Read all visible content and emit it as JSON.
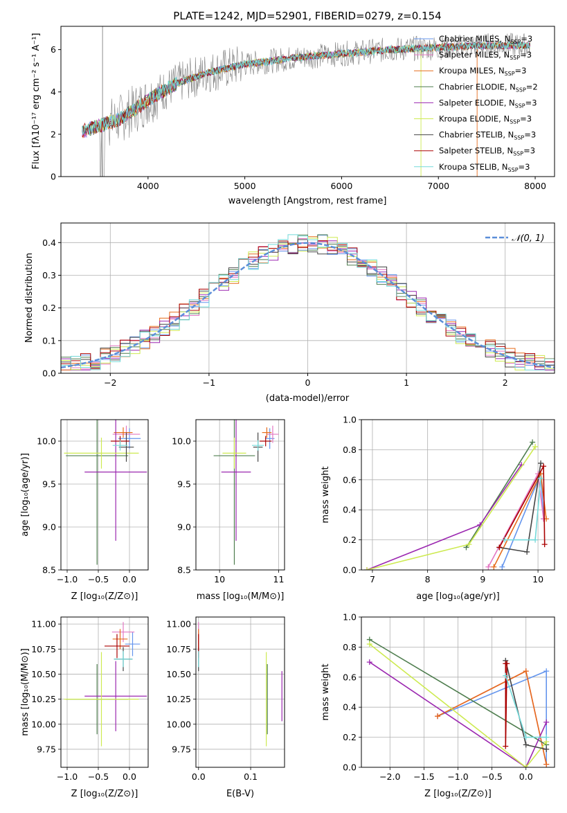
{
  "chart_data": [
    {
      "id": "spectrum",
      "type": "line",
      "title": "PLATE=1242, MJD=52901, FIBERID=0279, z=0.154",
      "xlabel": "wavelength [Angstrom, rest frame]",
      "ylabel": "Flux [fλ10⁻¹⁷ erg cm⁻² s⁻¹ A⁻¹]",
      "xlim": [
        3100,
        8200
      ],
      "ylim": [
        0,
        7.1
      ],
      "xticks": [
        4000,
        5000,
        6000,
        7000,
        8000
      ],
      "yticks": [
        0,
        2,
        4,
        6
      ],
      "grid": false,
      "legend_position": "top-right",
      "anchors": {
        "x": [
          3300,
          3500,
          3700,
          3900,
          4100,
          4300,
          4600,
          5000,
          5500,
          6000,
          6500,
          7000,
          7500,
          7900
        ],
        "y": [
          2.1,
          2.4,
          2.7,
          3.3,
          3.9,
          4.4,
          4.9,
          5.3,
          5.6,
          5.8,
          6.0,
          6.1,
          6.2,
          6.2
        ]
      },
      "series": [
        {
          "name": "Chabrier MILES, N",
          "sub": "SSP",
          "suffix": "=3",
          "color": "#6495ed"
        },
        {
          "name": "Salpeter MILES, N",
          "sub": "SSP",
          "suffix": "=3",
          "color": "#e377c2"
        },
        {
          "name": "Kroupa MILES, N",
          "sub": "SSP",
          "suffix": "=3",
          "color": "#e66b1a"
        },
        {
          "name": "Chabrier ELODIE, N",
          "sub": "SSP",
          "suffix": "=2",
          "color": "#4e7d4e"
        },
        {
          "name": "Salpeter ELODIE, N",
          "sub": "SSP",
          "suffix": "=3",
          "color": "#9b27b0"
        },
        {
          "name": "Kroupa ELODIE, N",
          "sub": "SSP",
          "suffix": "=3",
          "color": "#cdea50"
        },
        {
          "name": "Chabrier STELIB, N",
          "sub": "SSP",
          "suffix": "=3",
          "color": "#444444"
        },
        {
          "name": "Salpeter STELIB, N",
          "sub": "SSP",
          "suffix": "=3",
          "color": "#aa0000"
        },
        {
          "name": "Kroupa STELIB, N",
          "sub": "SSP",
          "suffix": "=3",
          "color": "#72d9d9"
        }
      ]
    },
    {
      "id": "residuals",
      "type": "histogram",
      "xlabel": "(data-model)/error",
      "ylabel": "Normed distribution",
      "xlim": [
        -2.5,
        2.5
      ],
      "ylim": [
        0,
        0.46
      ],
      "xticks": [
        -2,
        -1,
        0,
        1,
        2
      ],
      "yticks": [
        0.0,
        0.1,
        0.2,
        0.3,
        0.4
      ],
      "grid": true,
      "legend": "𝒩(0, 1)",
      "legend_position": "top-right",
      "bin_width": 0.1
    },
    {
      "id": "age_vs_Z",
      "type": "errorbar",
      "xlabel": "Z [log₁₀(Z/Z⊙)]",
      "ylabel": "age  [log₁₀(age/yr)]",
      "xlim": [
        -1.1,
        0.3
      ],
      "ylim": [
        8.5,
        10.25
      ],
      "xticks": [
        -1.0,
        -0.5,
        0.0
      ],
      "yticks": [
        8.5,
        9.0,
        9.5,
        10.0
      ],
      "grid": true,
      "points": [
        {
          "x": 0.0,
          "xerr": 0.18,
          "y": 10.03,
          "yerr": 0.12,
          "color": "#6495ed"
        },
        {
          "x": -0.05,
          "xerr": 0.22,
          "y": 10.08,
          "yerr": 0.1,
          "color": "#e377c2"
        },
        {
          "x": -0.1,
          "xerr": 0.15,
          "y": 10.1,
          "yerr": 0.06,
          "color": "#e66b1a"
        },
        {
          "x": -0.52,
          "xerr": 0.5,
          "y": 9.83,
          "yerr": 1.27,
          "color": "#4e7d4e"
        },
        {
          "x": -0.22,
          "xerr": 0.5,
          "y": 9.64,
          "yerr": 0.8,
          "color": "#9b27b0"
        },
        {
          "x": -0.45,
          "xerr": 0.6,
          "y": 9.86,
          "yerr": 0.18,
          "color": "#cdea50"
        },
        {
          "x": -0.05,
          "xerr": 0.12,
          "y": 9.93,
          "yerr": 0.17,
          "color": "#444444"
        },
        {
          "x": -0.15,
          "xerr": 0.15,
          "y": 10.0,
          "yerr": 0.06,
          "color": "#aa0000"
        },
        {
          "x": -0.15,
          "xerr": 0.12,
          "y": 9.95,
          "yerr": 0.06,
          "color": "#72d9d9"
        }
      ]
    },
    {
      "id": "age_vs_mass",
      "type": "errorbar",
      "xlabel": "mass [log₁₀(M/M⊙)]",
      "xlim": [
        9.6,
        11.1
      ],
      "ylim": [
        8.5,
        10.25
      ],
      "xticks": [
        10,
        11
      ],
      "yticks": [
        8.5,
        9.0,
        9.5,
        10.0
      ],
      "grid": true,
      "points": [
        {
          "x": 10.85,
          "xerr": 0.08,
          "y": 10.03,
          "yerr": 0.12,
          "color": "#6495ed"
        },
        {
          "x": 10.9,
          "xerr": 0.1,
          "y": 10.08,
          "yerr": 0.1,
          "color": "#e377c2"
        },
        {
          "x": 10.8,
          "xerr": 0.08,
          "y": 10.1,
          "yerr": 0.06,
          "color": "#e66b1a"
        },
        {
          "x": 10.25,
          "xerr": 0.35,
          "y": 9.83,
          "yerr": 1.27,
          "color": "#4e7d4e"
        },
        {
          "x": 10.28,
          "xerr": 0.25,
          "y": 9.64,
          "yerr": 0.8,
          "color": "#9b27b0"
        },
        {
          "x": 10.25,
          "xerr": 0.2,
          "y": 9.86,
          "yerr": 0.18,
          "color": "#cdea50"
        },
        {
          "x": 10.65,
          "xerr": 0.08,
          "y": 9.93,
          "yerr": 0.17,
          "color": "#444444"
        },
        {
          "x": 10.78,
          "xerr": 0.1,
          "y": 10.0,
          "yerr": 0.06,
          "color": "#aa0000"
        },
        {
          "x": 10.65,
          "xerr": 0.1,
          "y": 9.95,
          "yerr": 0.06,
          "color": "#72d9d9"
        }
      ]
    },
    {
      "id": "weight_vs_age",
      "type": "line",
      "xlabel": "age  [log₁₀(age/yr)]",
      "ylabel": "mass weight",
      "xlim": [
        6.8,
        10.3
      ],
      "ylim": [
        0,
        1
      ],
      "xticks": [
        7,
        8,
        9,
        10
      ],
      "yticks": [
        0.0,
        0.2,
        0.4,
        0.6,
        0.8,
        1.0
      ],
      "grid": true,
      "series": [
        {
          "color": "#6495ed",
          "points": [
            [
              9.35,
              0.02
            ],
            [
              10.05,
              0.64
            ],
            [
              10.1,
              0.34
            ]
          ]
        },
        {
          "color": "#e377c2",
          "points": [
            [
              9.1,
              0.02
            ],
            [
              10.0,
              0.64
            ],
            [
              10.1,
              0.34
            ]
          ]
        },
        {
          "color": "#e66b1a",
          "points": [
            [
              9.2,
              0.02
            ],
            [
              10.05,
              0.64
            ],
            [
              10.15,
              0.34
            ]
          ]
        },
        {
          "color": "#4e7d4e",
          "points": [
            [
              8.7,
              0.15
            ],
            [
              9.9,
              0.85
            ]
          ]
        },
        {
          "color": "#9b27b0",
          "points": [
            [
              6.9,
              0.0
            ],
            [
              8.95,
              0.3
            ],
            [
              9.7,
              0.7
            ]
          ]
        },
        {
          "color": "#cdea50",
          "points": [
            [
              6.9,
              0.0
            ],
            [
              8.75,
              0.17
            ],
            [
              9.95,
              0.82
            ]
          ]
        },
        {
          "color": "#444444",
          "points": [
            [
              9.3,
              0.15
            ],
            [
              9.8,
              0.12
            ],
            [
              10.05,
              0.71
            ]
          ]
        },
        {
          "color": "#aa0000",
          "points": [
            [
              9.3,
              0.15
            ],
            [
              10.1,
              0.69
            ],
            [
              10.12,
              0.17
            ]
          ]
        },
        {
          "color": "#72d9d9",
          "points": [
            [
              9.4,
              0.2
            ],
            [
              9.95,
              0.2
            ],
            [
              10.05,
              0.61
            ]
          ]
        }
      ]
    },
    {
      "id": "mass_vs_Z",
      "type": "errorbar",
      "xlabel": "Z [log₁₀(Z/Z⊙)]",
      "ylabel": "mass [log₁₀(M/M⊙)]",
      "xlim": [
        -1.1,
        0.3
      ],
      "ylim": [
        9.57,
        11.07
      ],
      "xticks": [
        -1.0,
        -0.5,
        0.0
      ],
      "yticks": [
        9.75,
        10.0,
        10.25,
        10.5,
        10.75,
        11.0
      ],
      "grid": true,
      "points": [
        {
          "x": 0.05,
          "xerr": 0.12,
          "y": 10.8,
          "yerr": 0.12,
          "color": "#6495ed"
        },
        {
          "x": -0.1,
          "xerr": 0.18,
          "y": 10.92,
          "yerr": 0.1,
          "color": "#e377c2"
        },
        {
          "x": -0.15,
          "xerr": 0.12,
          "y": 10.85,
          "yerr": 0.1,
          "color": "#e66b1a"
        },
        {
          "x": -0.52,
          "xerr": 0.5,
          "y": 10.25,
          "yerr": 0.35,
          "color": "#4e7d4e"
        },
        {
          "x": -0.22,
          "xerr": 0.5,
          "y": 10.28,
          "yerr": 0.35,
          "color": "#9b27b0"
        },
        {
          "x": -0.45,
          "xerr": 0.6,
          "y": 10.25,
          "yerr": 0.47,
          "color": "#cdea50"
        },
        {
          "x": -0.1,
          "xerr": 0.15,
          "y": 10.65,
          "yerr": 0.12,
          "color": "#444444"
        },
        {
          "x": -0.2,
          "xerr": 0.2,
          "y": 10.78,
          "yerr": 0.12,
          "color": "#aa0000"
        },
        {
          "x": -0.1,
          "xerr": 0.15,
          "y": 10.65,
          "yerr": 0.08,
          "color": "#72d9d9"
        }
      ]
    },
    {
      "id": "mass_vs_ebv",
      "type": "errorbar",
      "xlabel": "E(B-V)",
      "xlim": [
        -0.005,
        0.165
      ],
      "ylim": [
        9.57,
        11.07
      ],
      "xticks": [
        0.0,
        0.1
      ],
      "yticks": [
        9.75,
        10.0,
        10.25,
        10.5,
        10.75,
        11.0
      ],
      "grid": true,
      "points": [
        {
          "x": 0.0,
          "y": 10.8,
          "yerr": 0.12,
          "color": "#6495ed"
        },
        {
          "x": 0.0,
          "y": 10.92,
          "yerr": 0.1,
          "color": "#e377c2"
        },
        {
          "x": 0.0,
          "y": 10.85,
          "yerr": 0.1,
          "color": "#e66b1a"
        },
        {
          "x": 0.132,
          "y": 10.25,
          "yerr": 0.35,
          "color": "#4e7d4e"
        },
        {
          "x": 0.16,
          "y": 10.28,
          "yerr": 0.25,
          "color": "#9b27b0"
        },
        {
          "x": 0.13,
          "y": 10.25,
          "yerr": 0.47,
          "color": "#cdea50"
        },
        {
          "x": 0.0,
          "y": 10.65,
          "yerr": 0.12,
          "color": "#444444"
        },
        {
          "x": 0.0,
          "y": 10.78,
          "yerr": 0.12,
          "color": "#aa0000"
        },
        {
          "x": 0.0,
          "y": 10.65,
          "yerr": 0.08,
          "color": "#72d9d9"
        }
      ]
    },
    {
      "id": "weight_vs_Z",
      "type": "line",
      "xlabel": "Z [log₁₀(Z/Z⊙)]",
      "ylabel": "mass weight",
      "xlim": [
        -2.42,
        0.42
      ],
      "ylim": [
        0,
        1
      ],
      "xticks": [
        -2.0,
        -1.5,
        -1.0,
        -0.5,
        0.0
      ],
      "yticks": [
        0.0,
        0.2,
        0.4,
        0.6,
        0.8,
        1.0
      ],
      "grid": true,
      "series": [
        {
          "color": "#6495ed",
          "points": [
            [
              -1.3,
              0.34
            ],
            [
              0.3,
              0.64
            ],
            [
              0.3,
              0.02
            ]
          ]
        },
        {
          "color": "#e377c2",
          "points": [
            [
              -1.3,
              0.34
            ],
            [
              0.0,
              0.64
            ],
            [
              0.3,
              0.02
            ]
          ]
        },
        {
          "color": "#e66b1a",
          "points": [
            [
              -1.3,
              0.34
            ],
            [
              0.0,
              0.64
            ],
            [
              0.3,
              0.02
            ]
          ]
        },
        {
          "color": "#4e7d4e",
          "points": [
            [
              -2.3,
              0.85
            ],
            [
              0.3,
              0.15
            ]
          ]
        },
        {
          "color": "#9b27b0",
          "points": [
            [
              -2.3,
              0.7
            ],
            [
              0.0,
              0.0
            ],
            [
              0.3,
              0.3
            ]
          ]
        },
        {
          "color": "#cdea50",
          "points": [
            [
              -2.3,
              0.82
            ],
            [
              0.0,
              0.0
            ],
            [
              0.3,
              0.17
            ]
          ]
        },
        {
          "color": "#444444",
          "points": [
            [
              -0.3,
              0.71
            ],
            [
              0.0,
              0.15
            ],
            [
              0.3,
              0.12
            ]
          ]
        },
        {
          "color": "#aa0000",
          "points": [
            [
              -0.3,
              0.69
            ],
            [
              -0.3,
              0.14
            ],
            [
              -0.28,
              0.69
            ]
          ]
        },
        {
          "color": "#72d9d9",
          "points": [
            [
              -0.3,
              0.61
            ],
            [
              0.0,
              0.2
            ],
            [
              0.3,
              0.2
            ]
          ]
        }
      ]
    }
  ]
}
